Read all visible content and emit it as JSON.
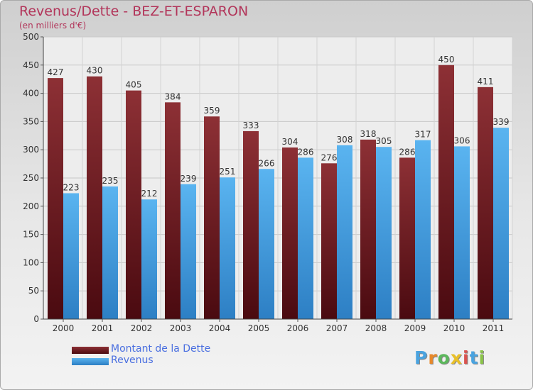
{
  "chart_data": {
    "type": "bar",
    "title": "Revenus/Dette - BEZ-ET-ESPARON",
    "subtitle": "(en milliers d'€)",
    "categories": [
      "2000",
      "2001",
      "2002",
      "2003",
      "2004",
      "2005",
      "2006",
      "2007",
      "2008",
      "2009",
      "2010",
      "2011"
    ],
    "series": [
      {
        "name": "Montant de la Dette",
        "values": [
          427,
          430,
          405,
          384,
          359,
          333,
          304,
          276,
          318,
          286,
          450,
          411
        ],
        "color": "#7a1f27"
      },
      {
        "name": "Revenus",
        "values": [
          223,
          235,
          212,
          239,
          251,
          266,
          286,
          308,
          305,
          317,
          306,
          339
        ],
        "color": "#4ba3e3"
      }
    ],
    "ylim": [
      0,
      500
    ],
    "yticks": [
      0,
      50,
      100,
      150,
      200,
      250,
      300,
      350,
      400,
      450,
      500
    ],
    "grid": true,
    "legend": "bottom-left"
  },
  "logo": {
    "letters": [
      "P",
      "r",
      "o",
      "x",
      "i",
      "t",
      "i"
    ],
    "colors": [
      "#4aa3df",
      "#e8892a",
      "#5cb85c",
      "#e8c02a",
      "#d9534f",
      "#4aa3df",
      "#8bc34a"
    ]
  }
}
